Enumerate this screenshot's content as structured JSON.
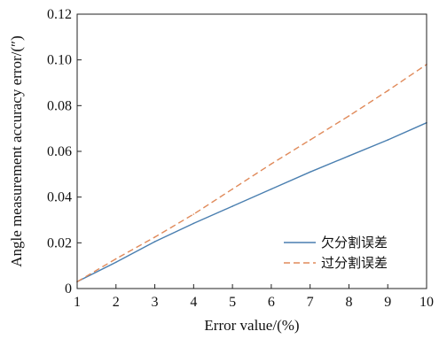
{
  "chart_data": {
    "type": "line",
    "xlabel": "Error value/(%)",
    "ylabel": "Angle measurement accuracy error/(″)",
    "x": [
      1,
      2,
      3,
      4,
      5,
      6,
      7,
      8,
      9,
      10
    ],
    "xlim": [
      1,
      10
    ],
    "ylim": [
      0,
      0.12
    ],
    "xticks": [
      "1",
      "2",
      "3",
      "4",
      "5",
      "6",
      "7",
      "8",
      "9",
      "10"
    ],
    "yticks": [
      "0",
      "0.02",
      "0.04",
      "0.06",
      "0.08",
      "0.10",
      "0.12"
    ],
    "yticks_values": [
      0,
      0.02,
      0.04,
      0.06,
      0.08,
      0.1,
      0.12
    ],
    "grid": false,
    "legend_position": "bottom-right",
    "series": [
      {
        "name": "欠分割误差",
        "color": "#4a7fb0",
        "style": "solid",
        "values": [
          0.003,
          0.0115,
          0.0205,
          0.0285,
          0.036,
          0.0435,
          0.051,
          0.058,
          0.065,
          0.0725
        ]
      },
      {
        "name": "过分割误差",
        "color": "#e08a5a",
        "style": "dashed",
        "values": [
          0.003,
          0.013,
          0.0225,
          0.0325,
          0.0435,
          0.0545,
          0.065,
          0.0755,
          0.0865,
          0.098
        ]
      }
    ]
  }
}
